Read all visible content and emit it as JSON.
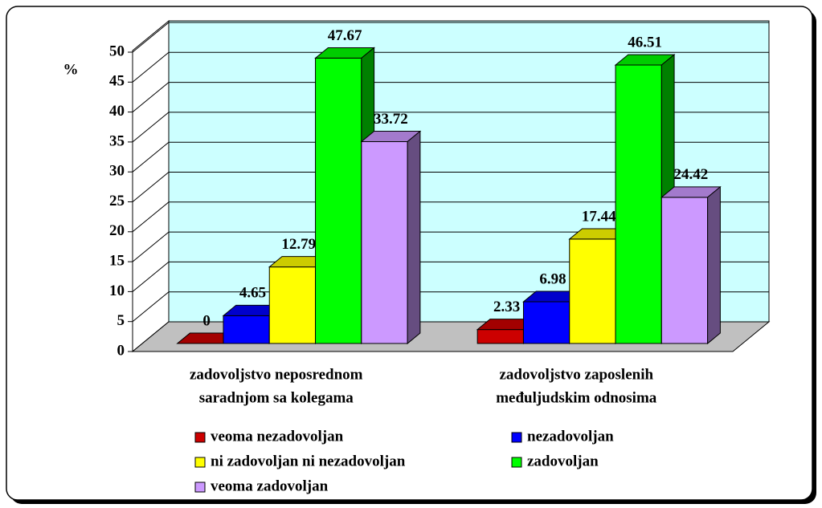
{
  "chart_data": {
    "type": "bar3d",
    "y_label": "%",
    "categories": [
      [
        "zadovoljstvo neposrednom",
        "saradnjom sa kolegama"
      ],
      [
        "zadovoljstvo zaposlenih",
        "međuljudskim odnosima"
      ]
    ],
    "series": [
      {
        "name": "veoma nezadovoljan",
        "color": "#cc0000",
        "values": [
          0,
          2.33
        ]
      },
      {
        "name": "nezadovoljan",
        "color": "#0000ff",
        "values": [
          4.65,
          6.98
        ]
      },
      {
        "name": "ni zadovoljan ni nezadovoljan",
        "color": "#ffff00",
        "values": [
          12.79,
          17.44
        ]
      },
      {
        "name": "zadovoljan",
        "color": "#00ff00",
        "values": [
          47.67,
          46.51
        ]
      },
      {
        "name": "veoma zadovoljan",
        "color": "#cc99ff",
        "values": [
          33.72,
          24.42
        ]
      }
    ],
    "ylim": [
      0,
      50
    ],
    "yticks": [
      0,
      5,
      10,
      15,
      20,
      25,
      30,
      35,
      40,
      45,
      50
    ],
    "grid": true,
    "legend": "bottom",
    "wall_color": "#ccffff",
    "floor_color": "#c0c0c0"
  }
}
